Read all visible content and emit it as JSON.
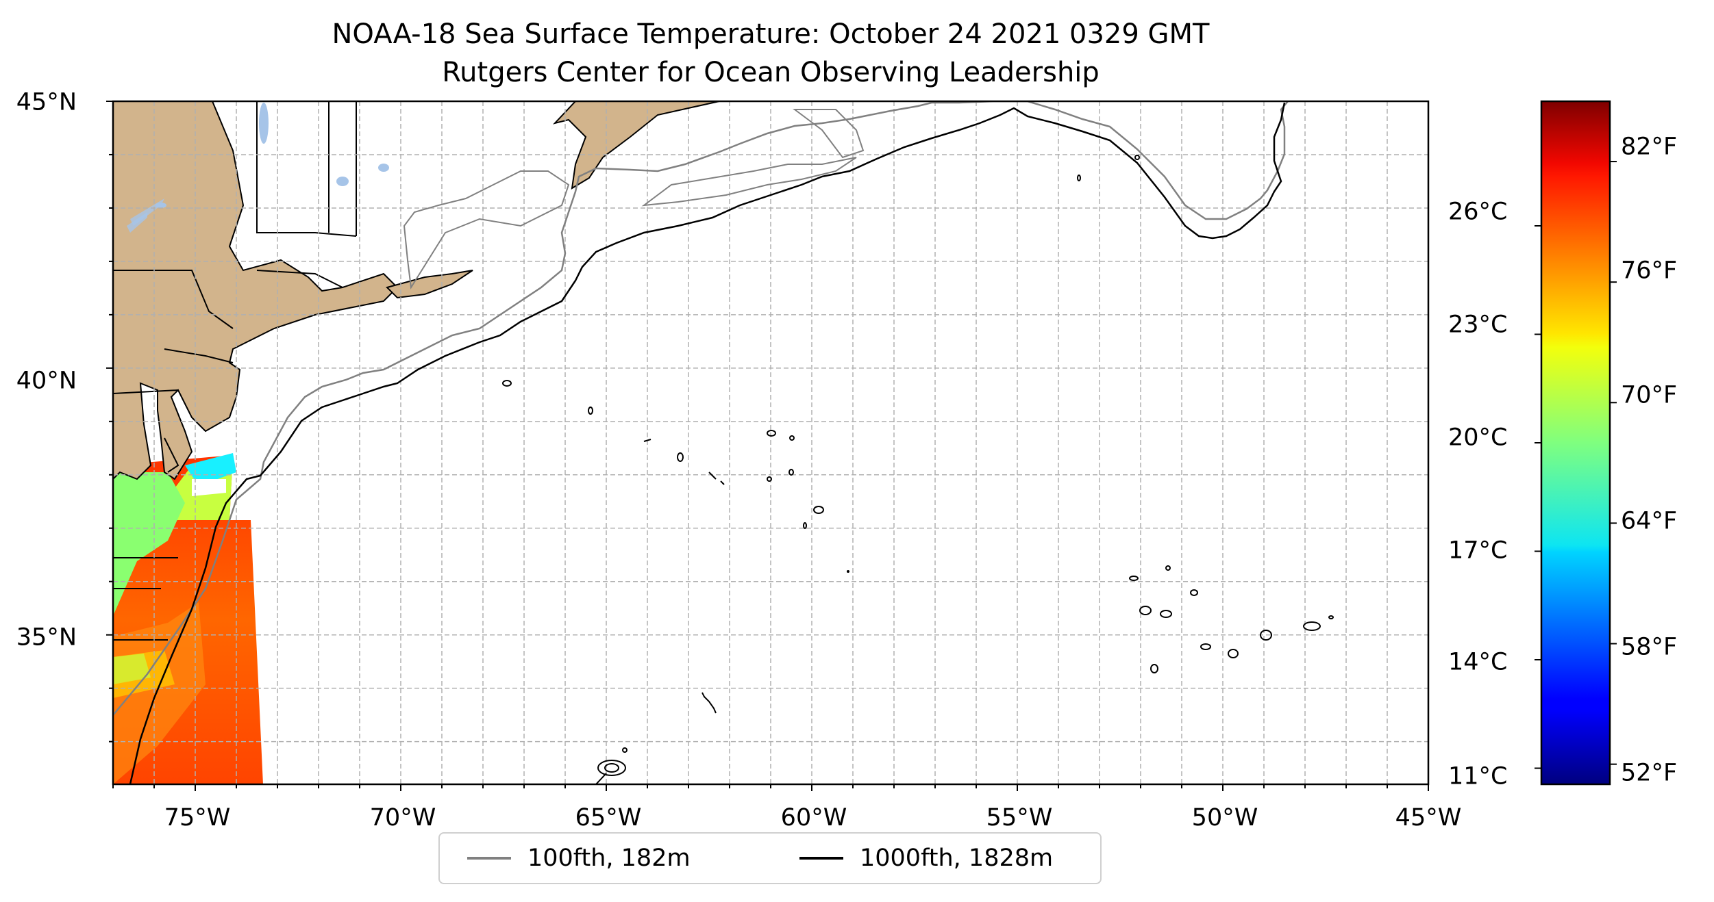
{
  "title": {
    "line1": "NOAA-18 Sea Surface Temperature: October 24 2021 0329 GMT",
    "line2": "Rutgers Center for Ocean Observing Leadership"
  },
  "map": {
    "lon_range": [
      -77,
      -45
    ],
    "lat_range": [
      32.2,
      45
    ],
    "x_ticks": [
      {
        "value": -75,
        "label": "75°W"
      },
      {
        "value": -70,
        "label": "70°W"
      },
      {
        "value": -65,
        "label": "65°W"
      },
      {
        "value": -60,
        "label": "60°W"
      },
      {
        "value": -55,
        "label": "55°W"
      },
      {
        "value": -50,
        "label": "50°W"
      },
      {
        "value": -45,
        "label": "45°W"
      }
    ],
    "y_ticks": [
      {
        "value": 45,
        "label": "45°N"
      },
      {
        "value": 40,
        "label": "40°N"
      },
      {
        "value": 35,
        "label": "35°N"
      }
    ],
    "gridlines": true,
    "land_color": "#d2b48c",
    "lake_color": "#a6c4e8"
  },
  "colorbar": {
    "colormap": "jet",
    "range_f": [
      51,
      85
    ],
    "fahrenheit_ticks": [
      {
        "value": 82,
        "label": "82°F"
      },
      {
        "value": 76,
        "label": "76°F"
      },
      {
        "value": 70,
        "label": "70°F"
      },
      {
        "value": 64,
        "label": "64°F"
      },
      {
        "value": 58,
        "label": "58°F"
      },
      {
        "value": 52,
        "label": "52°F"
      }
    ],
    "celsius_ticks": [
      {
        "value": 26,
        "label": "26°C"
      },
      {
        "value": 23,
        "label": "23°C"
      },
      {
        "value": 20,
        "label": "20°C"
      },
      {
        "value": 17,
        "label": "17°C"
      },
      {
        "value": 14,
        "label": "14°C"
      },
      {
        "value": 11,
        "label": "11°C"
      }
    ]
  },
  "legend": {
    "placement": "bottom-center",
    "items": [
      {
        "label": "100fth, 182m",
        "color": "#808080"
      },
      {
        "label": "1000fth, 1828m",
        "color": "#000000"
      }
    ]
  }
}
